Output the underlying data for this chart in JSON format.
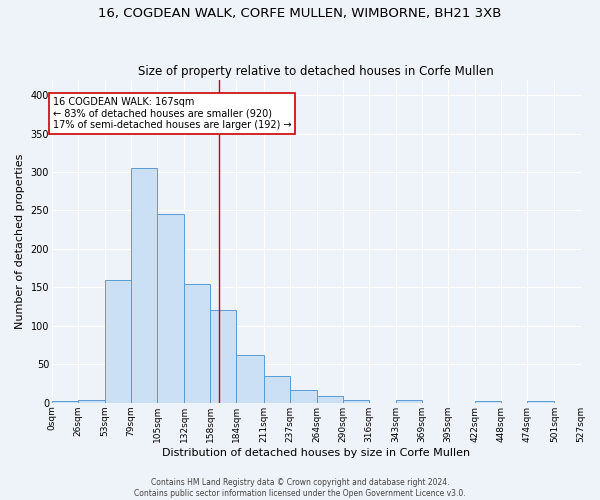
{
  "title": "16, COGDEAN WALK, CORFE MULLEN, WIMBORNE, BH21 3XB",
  "subtitle": "Size of property relative to detached houses in Corfe Mullen",
  "xlabel": "Distribution of detached houses by size in Corfe Mullen",
  "ylabel": "Number of detached properties",
  "bin_edges": [
    0,
    26,
    53,
    79,
    105,
    132,
    158,
    184,
    211,
    237,
    264,
    290,
    316,
    343,
    369,
    395,
    422,
    448,
    474,
    501,
    527
  ],
  "bin_counts": [
    2,
    4,
    160,
    305,
    245,
    155,
    120,
    62,
    35,
    16,
    9,
    3,
    0,
    3,
    0,
    0,
    2,
    0,
    2,
    0
  ],
  "bar_facecolor": "#cce0f5",
  "bar_edgecolor": "#5b9bd5",
  "vline_x": 167,
  "vline_color": "#cc0000",
  "annotation_text": "16 COGDEAN WALK: 167sqm\n← 83% of detached houses are smaller (920)\n17% of semi-detached houses are larger (192) →",
  "annotation_box_color": "#ffffff",
  "annotation_box_edgecolor": "#cc0000",
  "background_color": "#eef2f9",
  "grid_color": "#ffffff",
  "footer_text": "Contains HM Land Registry data © Crown copyright and database right 2024.\nContains public sector information licensed under the Open Government Licence v3.0.",
  "tick_labels": [
    "0sqm",
    "26sqm",
    "53sqm",
    "79sqm",
    "105sqm",
    "132sqm",
    "158sqm",
    "184sqm",
    "211sqm",
    "237sqm",
    "264sqm",
    "290sqm",
    "316sqm",
    "343sqm",
    "369sqm",
    "395sqm",
    "422sqm",
    "448sqm",
    "474sqm",
    "501sqm",
    "527sqm"
  ],
  "ylim": [
    0,
    420
  ],
  "title_fontsize": 9.5,
  "subtitle_fontsize": 8.5,
  "axis_label_fontsize": 8,
  "tick_fontsize": 6.5,
  "footer_fontsize": 5.5,
  "annotation_fontsize": 7
}
